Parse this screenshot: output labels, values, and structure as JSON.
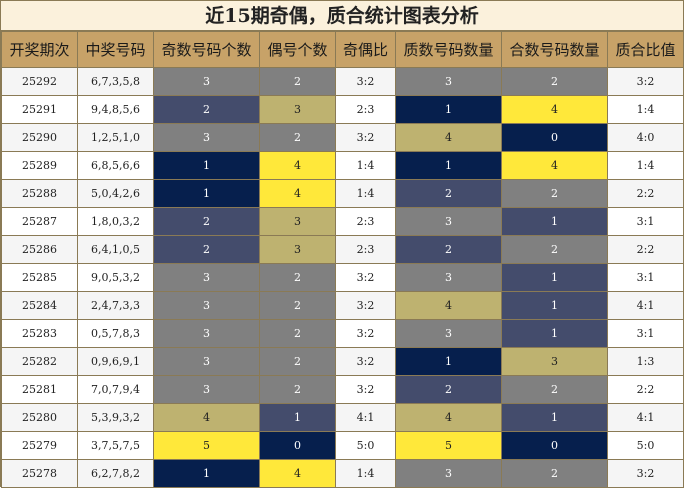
{
  "title": "近15期奇偶，质合统计图表分析",
  "headers": [
    "开奖期次",
    "中奖号码",
    "奇数号码个数",
    "偶号个数",
    "奇偶比",
    "质数号码数量",
    "合数号码数量",
    "质合比值"
  ],
  "rows": [
    {
      "period": "25292",
      "numbers": "6,7,3,5,8",
      "odd": "3",
      "even": "2",
      "odd_even": "3:2",
      "prime": "3",
      "composite": "2",
      "prime_comp": "3:2",
      "colors": {
        "odd": "gray",
        "even": "gray",
        "prime": "gray",
        "composite": "gray"
      }
    },
    {
      "period": "25291",
      "numbers": "9,4,8,5,6",
      "odd": "2",
      "even": "3",
      "odd_even": "2:3",
      "prime": "1",
      "composite": "4",
      "prime_comp": "1:4",
      "colors": {
        "odd": "slate",
        "even": "olive",
        "prime": "navy",
        "composite": "yellow"
      }
    },
    {
      "period": "25290",
      "numbers": "1,2,5,1,0",
      "odd": "3",
      "even": "2",
      "odd_even": "3:2",
      "prime": "4",
      "composite": "0",
      "prime_comp": "4:0",
      "colors": {
        "odd": "gray",
        "even": "gray",
        "prime": "olive",
        "composite": "navy"
      }
    },
    {
      "period": "25289",
      "numbers": "6,8,5,6,6",
      "odd": "1",
      "even": "4",
      "odd_even": "1:4",
      "prime": "1",
      "composite": "4",
      "prime_comp": "1:4",
      "colors": {
        "odd": "navy",
        "even": "yellow",
        "prime": "navy",
        "composite": "yellow"
      }
    },
    {
      "period": "25288",
      "numbers": "5,0,4,2,6",
      "odd": "1",
      "even": "4",
      "odd_even": "1:4",
      "prime": "2",
      "composite": "2",
      "prime_comp": "2:2",
      "colors": {
        "odd": "navy",
        "even": "yellow",
        "prime": "slate",
        "composite": "gray"
      }
    },
    {
      "period": "25287",
      "numbers": "1,8,0,3,2",
      "odd": "2",
      "even": "3",
      "odd_even": "2:3",
      "prime": "3",
      "composite": "1",
      "prime_comp": "3:1",
      "colors": {
        "odd": "slate",
        "even": "olive",
        "prime": "gray",
        "composite": "slate"
      }
    },
    {
      "period": "25286",
      "numbers": "6,4,1,0,5",
      "odd": "2",
      "even": "3",
      "odd_even": "2:3",
      "prime": "2",
      "composite": "2",
      "prime_comp": "2:2",
      "colors": {
        "odd": "slate",
        "even": "olive",
        "prime": "slate",
        "composite": "gray"
      }
    },
    {
      "period": "25285",
      "numbers": "9,0,5,3,2",
      "odd": "3",
      "even": "2",
      "odd_even": "3:2",
      "prime": "3",
      "composite": "1",
      "prime_comp": "3:1",
      "colors": {
        "odd": "gray",
        "even": "gray",
        "prime": "gray",
        "composite": "slate"
      }
    },
    {
      "period": "25284",
      "numbers": "2,4,7,3,3",
      "odd": "3",
      "even": "2",
      "odd_even": "3:2",
      "prime": "4",
      "composite": "1",
      "prime_comp": "4:1",
      "colors": {
        "odd": "gray",
        "even": "gray",
        "prime": "olive",
        "composite": "slate"
      }
    },
    {
      "period": "25283",
      "numbers": "0,5,7,8,3",
      "odd": "3",
      "even": "2",
      "odd_even": "3:2",
      "prime": "3",
      "composite": "1",
      "prime_comp": "3:1",
      "colors": {
        "odd": "gray",
        "even": "gray",
        "prime": "gray",
        "composite": "slate"
      }
    },
    {
      "period": "25282",
      "numbers": "0,9,6,9,1",
      "odd": "3",
      "even": "2",
      "odd_even": "3:2",
      "prime": "1",
      "composite": "3",
      "prime_comp": "1:3",
      "colors": {
        "odd": "gray",
        "even": "gray",
        "prime": "navy",
        "composite": "olive"
      }
    },
    {
      "period": "25281",
      "numbers": "7,0,7,9,4",
      "odd": "3",
      "even": "2",
      "odd_even": "3:2",
      "prime": "2",
      "composite": "2",
      "prime_comp": "2:2",
      "colors": {
        "odd": "gray",
        "even": "gray",
        "prime": "slate",
        "composite": "gray"
      }
    },
    {
      "period": "25280",
      "numbers": "5,3,9,3,2",
      "odd": "4",
      "even": "1",
      "odd_even": "4:1",
      "prime": "4",
      "composite": "1",
      "prime_comp": "4:1",
      "colors": {
        "odd": "olive",
        "even": "slate",
        "prime": "olive",
        "composite": "slate"
      }
    },
    {
      "period": "25279",
      "numbers": "3,7,5,7,5",
      "odd": "5",
      "even": "0",
      "odd_even": "5:0",
      "prime": "5",
      "composite": "0",
      "prime_comp": "5:0",
      "colors": {
        "odd": "yellow",
        "even": "navy",
        "prime": "yellow",
        "composite": "navy"
      }
    },
    {
      "period": "25278",
      "numbers": "6,2,7,8,2",
      "odd": "1",
      "even": "4",
      "odd_even": "1:4",
      "prime": "3",
      "composite": "2",
      "prime_comp": "3:2",
      "colors": {
        "odd": "navy",
        "even": "yellow",
        "prime": "gray",
        "composite": "gray"
      }
    }
  ]
}
